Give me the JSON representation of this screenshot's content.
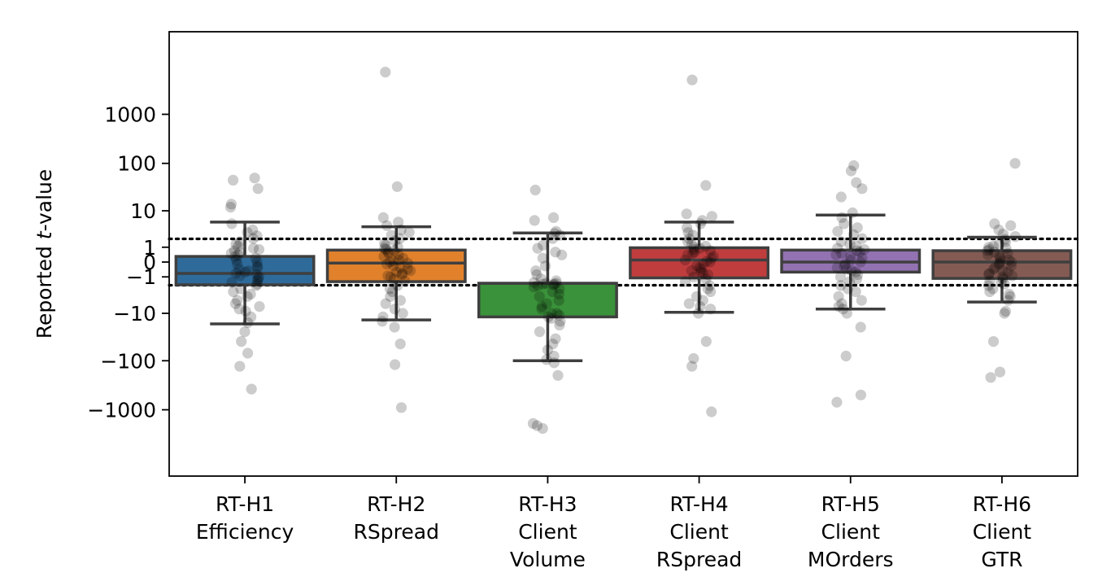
{
  "chart_data": {
    "type": "box",
    "title": "",
    "ylabel": {
      "prefix": "Reported ",
      "italic": "t",
      "suffix": "-value"
    },
    "yscale": "symlog",
    "ylim": [
      -2600,
      7200
    ],
    "yticks": [
      {
        "value": 1000,
        "label": "1000"
      },
      {
        "value": 100,
        "label": "100"
      },
      {
        "value": 10,
        "label": "10"
      },
      {
        "value": 1,
        "label": "1"
      },
      {
        "value": 0,
        "label": "0"
      },
      {
        "value": -1,
        "label": "−1"
      },
      {
        "value": -10,
        "label": "−10"
      },
      {
        "value": -100,
        "label": "−100"
      },
      {
        "value": -1000,
        "label": "−1000"
      }
    ],
    "reference_lines": [
      1.96,
      -1.96
    ],
    "categories": [
      {
        "lines": [
          "RT-H1",
          "Efficiency"
        ],
        "color": "#2f6b9a",
        "q1": -1.9,
        "median": -0.7,
        "q3": 0.3,
        "whisker_low": -17,
        "whisker_high": 5.5
      },
      {
        "lines": [
          "RT-H2",
          "RSpread"
        ],
        "color": "#e1812c",
        "q1": -1.5,
        "median": -0.05,
        "q3": 0.75,
        "whisker_low": -14,
        "whisker_high": 4.2
      },
      {
        "lines": [
          "RT-H3",
          "Client",
          "Volume"
        ],
        "color": "#3a923a",
        "q1": -12,
        "median": -1.7,
        "q3": -1.7,
        "whisker_low": -100,
        "whisker_high": 2.9
      },
      {
        "lines": [
          "RT-H4",
          "Client",
          "RSpread"
        ],
        "color": "#c03d3e",
        "q1": -1.1,
        "median": 0.1,
        "q3": 0.95,
        "whisker_low": -9.5,
        "whisker_high": 5.5
      },
      {
        "lines": [
          "RT-H5",
          "Client",
          "MOrders"
        ],
        "color": "#9372b2",
        "q1": -0.6,
        "median": 0.0,
        "q3": 0.75,
        "whisker_low": -8,
        "whisker_high": 8
      },
      {
        "lines": [
          "RT-H6",
          "Client",
          "GTR"
        ],
        "color": "#845b53",
        "q1": -1.15,
        "median": 0.0,
        "q3": 0.7,
        "whisker_low": -5.5,
        "whisker_high": 2.2
      }
    ],
    "points": [
      [
        45,
        50,
        30,
        14,
        12,
        5,
        3.5,
        3,
        2.4,
        2,
        1.6,
        1.3,
        1.1,
        0.9,
        0.8,
        0.7,
        0.6,
        0.5,
        0.4,
        0.3,
        0.2,
        0.1,
        0.0,
        -0.1,
        -0.2,
        -0.3,
        -0.4,
        -0.5,
        -0.6,
        -0.7,
        -0.8,
        -0.9,
        -1.0,
        -1.2,
        -1.4,
        -1.6,
        -1.8,
        -2.0,
        -2.5,
        -3,
        -3.5,
        -4,
        -5,
        -6,
        -7,
        -8,
        -9,
        -12,
        -16,
        -25,
        -40,
        -70,
        -130,
        -380
      ],
      [
        7200,
        33,
        7,
        5.5,
        4.5,
        3.5,
        3,
        2.5,
        2,
        1.7,
        1.4,
        1.2,
        1.0,
        0.9,
        0.8,
        0.7,
        0.6,
        0.5,
        0.4,
        0.3,
        0.2,
        0.1,
        0.05,
        0.0,
        -0.05,
        -0.1,
        -0.2,
        -0.3,
        -0.4,
        -0.5,
        -0.6,
        -0.7,
        -0.8,
        -0.9,
        -1.0,
        -1.2,
        -1.4,
        -2,
        -2.5,
        -3,
        -4,
        -5,
        -6,
        -8,
        -10,
        -12,
        -15,
        -20,
        -45,
        -120,
        -900
      ],
      [
        28,
        7,
        6,
        3.2,
        2.8,
        2.5,
        2,
        1.2,
        0.9,
        0.6,
        0.4,
        0.2,
        -0.2,
        -0.5,
        -0.8,
        -1.2,
        -1.4,
        -1.6,
        -1.7,
        -1.7,
        -1.8,
        -1.8,
        -1.9,
        -2.0,
        -2.2,
        -2.5,
        -3,
        -3.5,
        -4,
        -5,
        -6,
        -7,
        -8,
        -10,
        -10,
        -11,
        -12,
        -13,
        -15,
        -18,
        -25,
        -35,
        -45,
        -60,
        -80,
        -95,
        -110,
        -200,
        -1900,
        -2100,
        -2400
      ],
      [
        5000,
        35,
        8.5,
        7.5,
        6,
        5,
        4,
        3,
        2.5,
        2,
        1.6,
        1.3,
        1.1,
        1.0,
        0.9,
        0.8,
        0.7,
        0.6,
        0.5,
        0.4,
        0.3,
        0.2,
        0.1,
        0.05,
        0.0,
        -0.1,
        -0.2,
        -0.3,
        -0.4,
        -0.5,
        -0.6,
        -0.7,
        -0.8,
        -1.0,
        -1.2,
        -1.5,
        -2,
        -2.5,
        -3,
        -4,
        -5,
        -6,
        -7,
        -8,
        -10,
        -40,
        -90,
        -130,
        -1100
      ],
      [
        90,
        70,
        40,
        30,
        20,
        9,
        7,
        5,
        4,
        3.2,
        2.6,
        2,
        1.6,
        1.3,
        1.1,
        0.9,
        0.8,
        0.7,
        0.6,
        0.5,
        0.4,
        0.3,
        0.2,
        0.1,
        0.0,
        -0.1,
        -0.2,
        -0.3,
        -0.4,
        -0.5,
        -0.6,
        -0.8,
        -1.0,
        -1.2,
        -1.5,
        -2,
        -2.5,
        -3,
        -4,
        -5,
        -6,
        -7,
        -8,
        -10,
        -20,
        -80,
        -500,
        -700
      ],
      [
        100,
        5,
        4.5,
        3.5,
        2.7,
        2.3,
        1.9,
        1.6,
        1.3,
        1.1,
        1.0,
        0.9,
        0.8,
        0.7,
        0.6,
        0.5,
        0.4,
        0.3,
        0.2,
        0.1,
        0.05,
        0.0,
        -0.05,
        -0.1,
        -0.2,
        -0.3,
        -0.4,
        -0.5,
        -0.6,
        -0.7,
        -0.8,
        -0.9,
        -1.0,
        -1.2,
        -1.4,
        -1.6,
        -1.8,
        -2,
        -2.5,
        -3,
        -3.5,
        -4,
        -5,
        -9,
        -10,
        -40,
        -170,
        -220
      ]
    ]
  }
}
